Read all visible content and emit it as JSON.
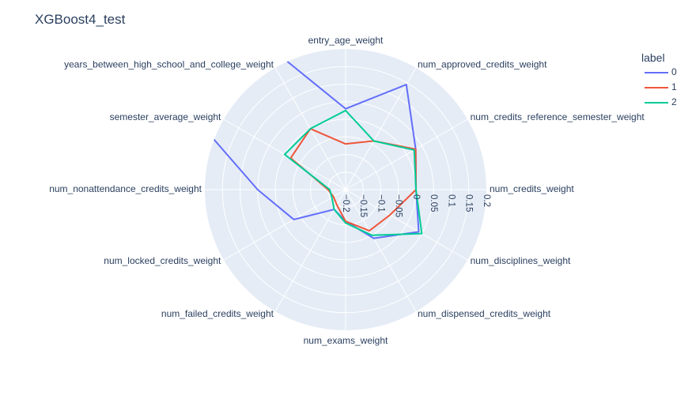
{
  "chart_data": {
    "type": "radar",
    "title": "XGBoost4_test",
    "legend": {
      "title": "label",
      "placement": "top-right"
    },
    "radial_range": [
      -0.2,
      0.2
    ],
    "radial_ticks": [
      -0.2,
      -0.15,
      -0.1,
      -0.05,
      0,
      0.05,
      0.1,
      0.15,
      0.2
    ],
    "radial_tick_labels": [
      "−0.2",
      "−0.15",
      "−0.1",
      "−0.05",
      "0",
      "0.05",
      "0.1",
      "0.15",
      "0.2"
    ],
    "grid": true,
    "categories": [
      "num_credits_weight",
      "num_credits_reference_semester_weight",
      "num_approved_credits_weight",
      "entry_age_weight",
      "years_between_high_school_and_college_weight",
      "semester_average_weight",
      "num_nonattendance_credits_weight",
      "num_locked_credits_weight",
      "num_failed_credits_weight",
      "num_exams_weight",
      "num_dispensed_credits_weight",
      "num_disciplines_weight"
    ],
    "series": [
      {
        "name": "0",
        "color": "#636efa",
        "values": [
          0.0,
          0.03,
          0.145,
          0.03,
          0.3,
          0.38,
          0.05,
          -0.03,
          -0.135,
          -0.11,
          -0.04,
          0.04
        ]
      },
      {
        "name": "1",
        "color": "#ef553b",
        "values": [
          0.0,
          0.03,
          -0.04,
          -0.07,
          0.0,
          -0.02,
          -0.15,
          -0.16,
          -0.15,
          -0.11,
          -0.065,
          -0.055
        ]
      },
      {
        "name": "2",
        "color": "#00cc96",
        "values": [
          0.0,
          0.025,
          -0.04,
          0.025,
          0.0,
          0.0,
          -0.155,
          -0.155,
          -0.135,
          -0.105,
          -0.05,
          0.05
        ]
      }
    ]
  }
}
